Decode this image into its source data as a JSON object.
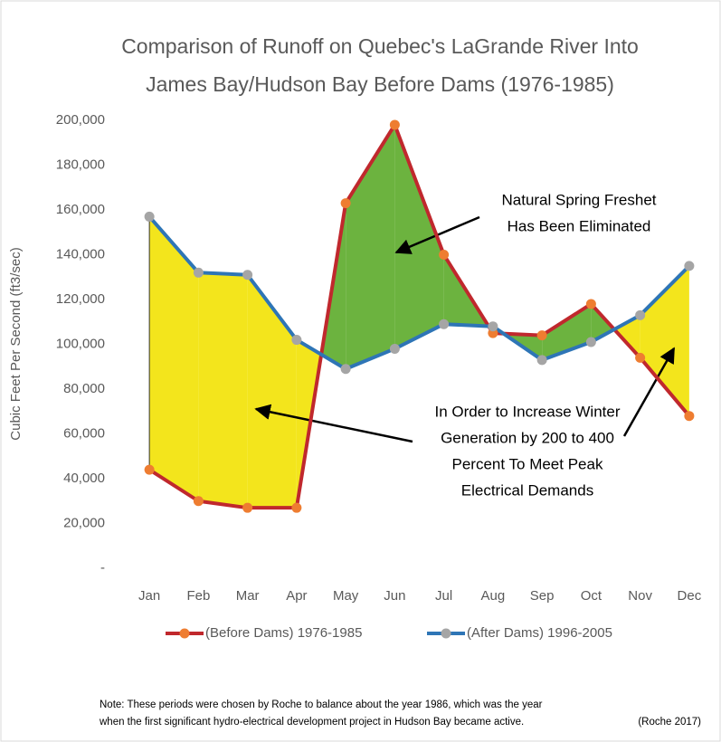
{
  "chart_data": {
    "type": "line",
    "title": [
      "Comparison of Runoff on Quebec's LaGrande River Into",
      "James Bay/Hudson Bay Before Dams (1976-1985)"
    ],
    "y_label": "Cubic Feet Per Second (ft3/sec)",
    "categories": [
      "Jan",
      "Feb",
      "Mar",
      "Apr",
      "May",
      "Jun",
      "Jul",
      "Aug",
      "Sep",
      "Oct",
      "Nov",
      "Dec"
    ],
    "series": [
      {
        "name": "(Before Dams) 1976-1985",
        "color": "#c0282d",
        "marker_color": "#ee7d31",
        "values": [
          44000,
          30000,
          27000,
          27000,
          163000,
          198000,
          140000,
          105000,
          104000,
          118000,
          94000,
          68000
        ]
      },
      {
        "name": "(After Dams) 1996-2005",
        "color": "#2e75b6",
        "marker_color": "#a5a5a5",
        "values": [
          157000,
          132000,
          131000,
          102000,
          89000,
          98000,
          109000,
          108000,
          93000,
          101000,
          113000,
          135000
        ]
      }
    ],
    "fill_between": {
      "before_higher": "#6cb33f",
      "after_higher": "#f3e51c"
    },
    "ylim": [
      0,
      200000
    ],
    "yticks": [
      {
        "value": 0,
        "label": "-"
      },
      {
        "value": 20000,
        "label": "20,000"
      },
      {
        "value": 40000,
        "label": "40,000"
      },
      {
        "value": 60000,
        "label": "60,000"
      },
      {
        "value": 80000,
        "label": "80,000"
      },
      {
        "value": 100000,
        "label": "100,000"
      },
      {
        "value": 120000,
        "label": "120,000"
      },
      {
        "value": 140000,
        "label": "140,000"
      },
      {
        "value": 160000,
        "label": "160,000"
      },
      {
        "value": 180000,
        "label": "180,000"
      },
      {
        "value": 200000,
        "label": "200,000"
      }
    ],
    "legend": "bottom",
    "annotations": [
      [
        "Natural Spring Freshet",
        "Has Been Eliminated"
      ],
      [
        "In Order to Increase Winter",
        "Generation by 200 to 400",
        "Percent To Meet Peak",
        "Electrical Demands"
      ]
    ],
    "note": [
      "Note: These periods were chosen by Roche to balance about the year 1986, which was the year",
      "when the first significant hydro-electrical development project in Hudson Bay became active."
    ],
    "source": "(Roche 2017)"
  }
}
